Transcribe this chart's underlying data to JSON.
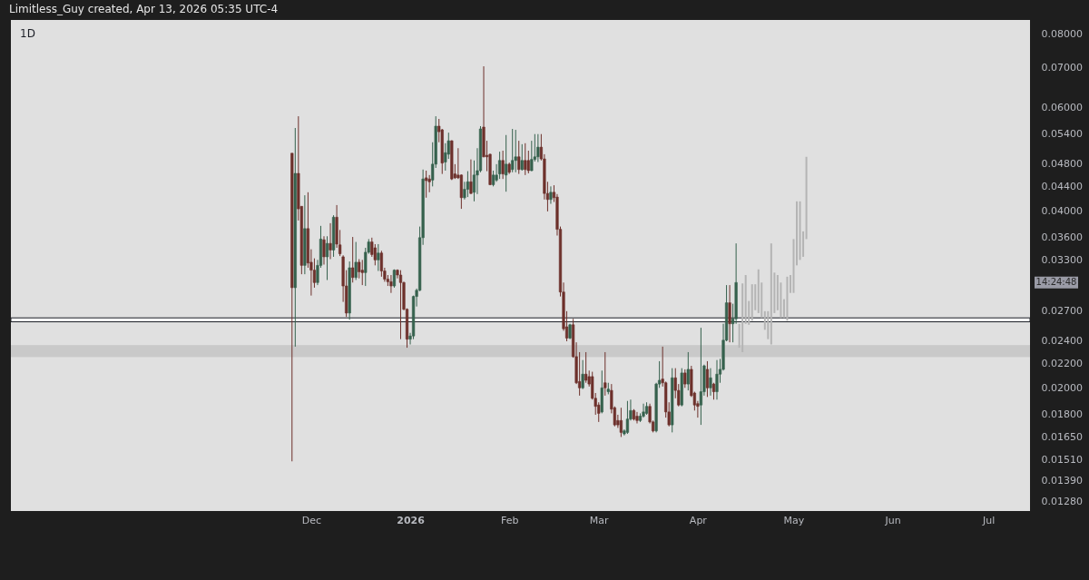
{
  "chart_data": {
    "type": "candlestick",
    "title": "1D",
    "annotations": [
      "Limitless_Guy created, Apr 13, 2026 05:35 UTC-4",
      "14:24:48"
    ],
    "x": [
      "2025-11-25",
      "2025-11-26",
      "2025-11-27",
      "2025-11-28",
      "2025-11-29",
      "2025-11-30",
      "2025-12-01",
      "2025-12-02",
      "2025-12-03",
      "2025-12-04",
      "2025-12-05",
      "2025-12-06",
      "2025-12-07",
      "2025-12-08",
      "2025-12-09",
      "2025-12-10",
      "2025-12-11",
      "2025-12-12",
      "2025-12-13",
      "2025-12-14",
      "2025-12-15",
      "2025-12-16",
      "2025-12-17",
      "2025-12-18",
      "2025-12-19",
      "2025-12-20",
      "2025-12-21",
      "2025-12-22",
      "2025-12-23",
      "2025-12-24",
      "2025-12-25",
      "2025-12-26",
      "2025-12-27",
      "2025-12-28",
      "2025-12-29",
      "2025-12-30",
      "2025-12-31",
      "2026-01-01",
      "2026-01-02",
      "2026-01-03",
      "2026-01-04",
      "2026-01-05",
      "2026-01-06",
      "2026-01-07",
      "2026-01-08",
      "2026-01-09",
      "2026-01-10",
      "2026-01-11",
      "2026-01-12",
      "2026-01-13",
      "2026-01-14",
      "2026-01-15",
      "2026-01-16",
      "2026-01-17",
      "2026-01-18",
      "2026-01-19",
      "2026-01-20",
      "2026-01-21",
      "2026-01-22",
      "2026-01-23",
      "2026-01-24",
      "2026-01-25",
      "2026-01-26",
      "2026-01-27",
      "2026-01-28",
      "2026-01-29",
      "2026-01-30",
      "2026-01-31",
      "2026-02-01",
      "2026-02-02",
      "2026-02-03",
      "2026-02-04",
      "2026-02-05",
      "2026-02-06",
      "2026-02-07",
      "2026-02-08",
      "2026-02-09",
      "2026-02-10",
      "2026-02-11",
      "2026-02-12",
      "2026-02-13",
      "2026-02-14",
      "2026-02-15",
      "2026-02-16",
      "2026-02-17",
      "2026-02-18",
      "2026-02-19",
      "2026-02-20",
      "2026-02-21",
      "2026-02-22",
      "2026-02-23",
      "2026-02-24",
      "2026-02-25",
      "2026-02-26",
      "2026-02-27",
      "2026-02-28",
      "2026-03-01",
      "2026-03-02",
      "2026-03-03",
      "2026-03-04",
      "2026-03-05",
      "2026-03-06",
      "2026-03-07",
      "2026-03-08",
      "2026-03-09",
      "2026-03-10",
      "2026-03-11",
      "2026-03-12",
      "2026-03-13",
      "2026-03-14",
      "2026-03-15",
      "2026-03-16",
      "2026-03-17",
      "2026-03-18",
      "2026-03-19",
      "2026-03-20",
      "2026-03-21",
      "2026-03-22",
      "2026-03-23",
      "2026-03-24",
      "2026-03-25",
      "2026-03-26",
      "2026-03-27",
      "2026-03-28",
      "2026-03-29",
      "2026-03-30",
      "2026-03-31",
      "2026-04-01",
      "2026-04-02",
      "2026-04-03",
      "2026-04-04",
      "2026-04-05",
      "2026-04-06",
      "2026-04-07",
      "2026-04-08",
      "2026-04-09",
      "2026-04-10",
      "2026-04-11",
      "2026-04-12",
      "2026-04-13"
    ],
    "ohlc": [
      [
        0.0501,
        0.0501,
        0.015,
        0.0296
      ],
      [
        0.0296,
        0.0553,
        0.0235,
        0.0463
      ],
      [
        0.0463,
        0.0579,
        0.0385,
        0.0403
      ],
      [
        0.0407,
        0.0407,
        0.0312,
        0.0323
      ],
      [
        0.0323,
        0.0425,
        0.0312,
        0.0373
      ],
      [
        0.0373,
        0.043,
        0.032,
        0.0326
      ],
      [
        0.0327,
        0.0344,
        0.0287,
        0.0317
      ],
      [
        0.0317,
        0.0332,
        0.0296,
        0.0302
      ],
      [
        0.0302,
        0.033,
        0.0299,
        0.0323
      ],
      [
        0.0323,
        0.0377,
        0.032,
        0.0358
      ],
      [
        0.0357,
        0.0362,
        0.0324,
        0.0334
      ],
      [
        0.0334,
        0.0362,
        0.0305,
        0.0352
      ],
      [
        0.0352,
        0.0381,
        0.0331,
        0.0343
      ],
      [
        0.0343,
        0.0393,
        0.0334,
        0.039
      ],
      [
        0.039,
        0.0409,
        0.0346,
        0.0351
      ],
      [
        0.035,
        0.0371,
        0.0335,
        0.0338
      ],
      [
        0.0334,
        0.0336,
        0.028,
        0.0298
      ],
      [
        0.0298,
        0.0317,
        0.0264,
        0.0268
      ],
      [
        0.0268,
        0.0328,
        0.0261,
        0.032
      ],
      [
        0.032,
        0.0361,
        0.0302,
        0.0308
      ],
      [
        0.0308,
        0.0354,
        0.0305,
        0.0327
      ],
      [
        0.0327,
        0.0331,
        0.0307,
        0.0315
      ],
      [
        0.0317,
        0.033,
        0.0299,
        0.0314
      ],
      [
        0.0314,
        0.0346,
        0.0298,
        0.034
      ],
      [
        0.034,
        0.0358,
        0.0338,
        0.0354
      ],
      [
        0.0354,
        0.036,
        0.0334,
        0.0337
      ],
      [
        0.0346,
        0.0351,
        0.0323,
        0.033
      ],
      [
        0.033,
        0.0351,
        0.0316,
        0.0339
      ],
      [
        0.0339,
        0.0342,
        0.0309,
        0.0316
      ],
      [
        0.0316,
        0.032,
        0.0303,
        0.0306
      ],
      [
        0.0306,
        0.0311,
        0.0298,
        0.0303
      ],
      [
        0.0303,
        0.0311,
        0.029,
        0.0298
      ],
      [
        0.0298,
        0.0318,
        0.0296,
        0.0317
      ],
      [
        0.0317,
        0.0318,
        0.0307,
        0.0311
      ],
      [
        0.0311,
        0.0317,
        0.0242,
        0.0302
      ],
      [
        0.0302,
        0.0303,
        0.0271,
        0.0272
      ],
      [
        0.0272,
        0.0273,
        0.0234,
        0.0242
      ],
      [
        0.0242,
        0.0248,
        0.0237,
        0.0245
      ],
      [
        0.0245,
        0.0287,
        0.0242,
        0.0286
      ],
      [
        0.0286,
        0.0295,
        0.0275,
        0.0293
      ],
      [
        0.0293,
        0.0376,
        0.0292,
        0.036
      ],
      [
        0.036,
        0.047,
        0.035,
        0.0453
      ],
      [
        0.0455,
        0.0468,
        0.0421,
        0.045
      ],
      [
        0.0453,
        0.046,
        0.043,
        0.0448
      ],
      [
        0.0451,
        0.0523,
        0.044,
        0.048
      ],
      [
        0.048,
        0.0579,
        0.0473,
        0.0557
      ],
      [
        0.0557,
        0.0573,
        0.0523,
        0.0545
      ],
      [
        0.0549,
        0.0551,
        0.0462,
        0.0482
      ],
      [
        0.0484,
        0.0521,
        0.0468,
        0.0502
      ],
      [
        0.0499,
        0.0543,
        0.049,
        0.0526
      ],
      [
        0.0526,
        0.0527,
        0.0451,
        0.0453
      ],
      [
        0.0462,
        0.048,
        0.0453,
        0.0455
      ],
      [
        0.046,
        0.0511,
        0.0453,
        0.0455
      ],
      [
        0.046,
        0.0461,
        0.0403,
        0.0421
      ],
      [
        0.0421,
        0.0448,
        0.0418,
        0.0435
      ],
      [
        0.0435,
        0.0467,
        0.0422,
        0.0448
      ],
      [
        0.0448,
        0.0489,
        0.0427,
        0.0428
      ],
      [
        0.043,
        0.0487,
        0.0415,
        0.046
      ],
      [
        0.046,
        0.0511,
        0.0427,
        0.0468
      ],
      [
        0.0468,
        0.0557,
        0.0465,
        0.0551
      ],
      [
        0.0555,
        0.0704,
        0.0493,
        0.0494
      ],
      [
        0.0497,
        0.0526,
        0.0467,
        0.0494
      ],
      [
        0.0499,
        0.05,
        0.0442,
        0.0443
      ],
      [
        0.0443,
        0.0468,
        0.044,
        0.046
      ],
      [
        0.0451,
        0.048,
        0.0448,
        0.046
      ],
      [
        0.0462,
        0.0504,
        0.0453,
        0.0487
      ],
      [
        0.0487,
        0.0506,
        0.0453,
        0.0462
      ],
      [
        0.046,
        0.0538,
        0.0431,
        0.048
      ],
      [
        0.048,
        0.0483,
        0.0462,
        0.0465
      ],
      [
        0.047,
        0.0551,
        0.0465,
        0.0487
      ],
      [
        0.0487,
        0.0549,
        0.0465,
        0.0494
      ],
      [
        0.0494,
        0.0526,
        0.0462,
        0.047
      ],
      [
        0.047,
        0.0519,
        0.0468,
        0.0487
      ],
      [
        0.0487,
        0.0521,
        0.046,
        0.047
      ],
      [
        0.0487,
        0.0506,
        0.0463,
        0.0468
      ],
      [
        0.0468,
        0.0526,
        0.0467,
        0.0489
      ],
      [
        0.0489,
        0.054,
        0.0485,
        0.0494
      ],
      [
        0.0494,
        0.054,
        0.0484,
        0.0513
      ],
      [
        0.0513,
        0.054,
        0.0487,
        0.049
      ],
      [
        0.049,
        0.0499,
        0.0418,
        0.0428
      ],
      [
        0.0428,
        0.0448,
        0.0399,
        0.0418
      ],
      [
        0.0418,
        0.044,
        0.0411,
        0.043
      ],
      [
        0.043,
        0.0442,
        0.0414,
        0.0421
      ],
      [
        0.0422,
        0.0427,
        0.0363,
        0.0372
      ],
      [
        0.0372,
        0.0376,
        0.0286,
        0.0291
      ],
      [
        0.0291,
        0.0302,
        0.025,
        0.0252
      ],
      [
        0.0254,
        0.027,
        0.024,
        0.0243
      ],
      [
        0.0243,
        0.0257,
        0.0242,
        0.0256
      ],
      [
        0.0256,
        0.0262,
        0.0225,
        0.0226
      ],
      [
        0.0226,
        0.0239,
        0.0203,
        0.0204
      ],
      [
        0.0205,
        0.023,
        0.0194,
        0.02
      ],
      [
        0.02,
        0.0223,
        0.0199,
        0.0211
      ],
      [
        0.0211,
        0.023,
        0.0204,
        0.0206
      ],
      [
        0.0209,
        0.0214,
        0.0201,
        0.0203
      ],
      [
        0.0209,
        0.0213,
        0.0191,
        0.0192
      ],
      [
        0.0192,
        0.0196,
        0.018,
        0.0186
      ],
      [
        0.0187,
        0.0189,
        0.0175,
        0.0181
      ],
      [
        0.0182,
        0.0214,
        0.0181,
        0.02
      ],
      [
        0.0204,
        0.023,
        0.0194,
        0.02
      ],
      [
        0.0197,
        0.0204,
        0.0195,
        0.0199
      ],
      [
        0.0198,
        0.0203,
        0.0181,
        0.0184
      ],
      [
        0.0185,
        0.0186,
        0.0172,
        0.0173
      ],
      [
        0.0176,
        0.018,
        0.0171,
        0.0173
      ],
      [
        0.0176,
        0.0185,
        0.0165,
        0.0168
      ],
      [
        0.0167,
        0.017,
        0.0166,
        0.0169
      ],
      [
        0.0168,
        0.019,
        0.0167,
        0.0177
      ],
      [
        0.0177,
        0.0191,
        0.0176,
        0.0183
      ],
      [
        0.0183,
        0.0184,
        0.0176,
        0.0177
      ],
      [
        0.0179,
        0.0182,
        0.0174,
        0.0176
      ],
      [
        0.0176,
        0.0181,
        0.0175,
        0.0179
      ],
      [
        0.0179,
        0.0188,
        0.0178,
        0.0182
      ],
      [
        0.0181,
        0.0189,
        0.018,
        0.0186
      ],
      [
        0.0186,
        0.0188,
        0.0174,
        0.0175
      ],
      [
        0.0175,
        0.0176,
        0.0168,
        0.0169
      ],
      [
        0.0169,
        0.0204,
        0.0168,
        0.0203
      ],
      [
        0.0203,
        0.0222,
        0.02,
        0.0206
      ],
      [
        0.0207,
        0.0235,
        0.0201,
        0.0204
      ],
      [
        0.0204,
        0.0205,
        0.0178,
        0.0182
      ],
      [
        0.0182,
        0.0189,
        0.0172,
        0.0173
      ],
      [
        0.0173,
        0.0216,
        0.0168,
        0.0208
      ],
      [
        0.0208,
        0.0216,
        0.0192,
        0.0198
      ],
      [
        0.0198,
        0.0203,
        0.0186,
        0.0187
      ],
      [
        0.0187,
        0.0216,
        0.0186,
        0.0212
      ],
      [
        0.0212,
        0.0215,
        0.02,
        0.0203
      ],
      [
        0.0203,
        0.023,
        0.0198,
        0.0215
      ],
      [
        0.0215,
        0.0218,
        0.0193,
        0.0194
      ],
      [
        0.0196,
        0.0197,
        0.0183,
        0.0187
      ],
      [
        0.0188,
        0.019,
        0.0178,
        0.0186
      ],
      [
        0.0187,
        0.0253,
        0.0173,
        0.0197
      ],
      [
        0.0197,
        0.0219,
        0.0194,
        0.0218
      ],
      [
        0.0215,
        0.0222,
        0.0193,
        0.02
      ],
      [
        0.02,
        0.0216,
        0.0194,
        0.0208
      ],
      [
        0.0203,
        0.0204,
        0.0191,
        0.0197
      ],
      [
        0.0197,
        0.0223,
        0.0191,
        0.0211
      ],
      [
        0.0211,
        0.0224,
        0.0204,
        0.0215
      ],
      [
        0.0215,
        0.0257,
        0.0214,
        0.0241
      ],
      [
        0.0241,
        0.0299,
        0.024,
        0.0279
      ],
      [
        0.0279,
        0.0299,
        0.0239,
        0.0257
      ],
      [
        0.0257,
        0.0278,
        0.0239,
        0.0262
      ],
      [
        0.0262,
        0.0352,
        0.0257,
        0.0302
      ]
    ],
    "colors": [
      "#6d302b",
      "#35614d",
      "#6d302b",
      "#6d302b",
      "#35614d",
      "#6d302b",
      "#6d302b",
      "#6d302b",
      "#35614d",
      "#35614d",
      "#6d302b",
      "#35614d",
      "#6d302b",
      "#35614d",
      "#6d302b",
      "#6d302b",
      "#6d302b",
      "#6d302b",
      "#35614d",
      "#6d302b",
      "#35614d",
      "#6d302b",
      "#6d302b",
      "#35614d",
      "#35614d",
      "#6d302b",
      "#6d302b",
      "#35614d",
      "#6d302b",
      "#6d302b",
      "#6d302b",
      "#6d302b",
      "#35614d",
      "#6d302b",
      "#6d302b",
      "#6d302b",
      "#6d302b",
      "#35614d",
      "#35614d",
      "#35614d",
      "#35614d",
      "#35614d",
      "#6d302b",
      "#6d302b",
      "#35614d",
      "#35614d",
      "#6d302b",
      "#6d302b",
      "#35614d",
      "#35614d",
      "#6d302b",
      "#6d302b",
      "#6d302b",
      "#6d302b",
      "#35614d",
      "#35614d",
      "#6d302b",
      "#35614d",
      "#35614d",
      "#35614d",
      "#6d302b",
      "#6d302b",
      "#6d302b",
      "#35614d",
      "#35614d",
      "#35614d",
      "#6d302b",
      "#35614d",
      "#6d302b",
      "#35614d",
      "#35614d",
      "#6d302b",
      "#35614d",
      "#6d302b",
      "#6d302b",
      "#35614d",
      "#35614d",
      "#35614d",
      "#6d302b",
      "#6d302b",
      "#6d302b",
      "#35614d",
      "#6d302b",
      "#6d302b",
      "#6d302b",
      "#6d302b",
      "#6d302b",
      "#35614d",
      "#6d302b",
      "#6d302b",
      "#6d302b",
      "#35614d",
      "#6d302b",
      "#6d302b",
      "#6d302b",
      "#6d302b",
      "#6d302b",
      "#35614d",
      "#6d302b",
      "#35614d",
      "#6d302b",
      "#6d302b",
      "#6d302b",
      "#6d302b",
      "#35614d",
      "#35614d",
      "#35614d",
      "#6d302b",
      "#6d302b",
      "#35614d",
      "#35614d",
      "#35614d",
      "#6d302b",
      "#6d302b",
      "#35614d",
      "#35614d",
      "#6d302b",
      "#6d302b",
      "#6d302b",
      "#35614d",
      "#6d302b",
      "#6d302b",
      "#35614d",
      "#6d302b",
      "#35614d",
      "#6d302b",
      "#6d302b",
      "#6d302b",
      "#35614d",
      "#35614d",
      "#6d302b",
      "#35614d",
      "#6d302b",
      "#35614d",
      "#35614d",
      "#35614d",
      "#35614d",
      "#6d302b",
      "#35614d",
      "#35614d"
    ],
    "series": [
      {
        "type": "bar",
        "color": "#b4b4b4",
        "x": [
          "2026-04-14",
          "2026-04-15",
          "2026-04-16",
          "2026-04-17",
          "2026-04-18",
          "2026-04-19",
          "2026-04-20",
          "2026-04-21",
          "2026-04-22",
          "2026-04-23",
          "2026-04-24",
          "2026-04-25",
          "2026-04-26",
          "2026-04-27",
          "2026-04-28",
          "2026-04-29",
          "2026-04-30",
          "2026-05-01",
          "2026-05-02",
          "2026-05-03",
          "2026-05-04",
          "2026-05-05"
        ],
        "base": [
          0.0234,
          0.023,
          0.0257,
          0.0256,
          0.026,
          0.0271,
          0.0268,
          0.0263,
          0.0251,
          0.0242,
          0.0237,
          0.0268,
          0.0271,
          0.0263,
          0.0263,
          0.026,
          0.029,
          0.029,
          0.0323,
          0.033,
          0.0334,
          0.0358
        ],
        "values": [
          0.0023,
          0.0071,
          0.0054,
          0.0025,
          0.004,
          0.0029,
          0.005,
          0.0039,
          0.0019,
          0.0028,
          0.0115,
          0.0046,
          0.004,
          0.0039,
          0.002,
          0.0049,
          0.0021,
          0.0068,
          0.0092,
          0.0085,
          0.0035,
          0.0136
        ]
      }
    ],
    "bands": [
      {
        "axis": "y",
        "from": 0.0259,
        "to": 0.0263,
        "color": "#ffffff"
      },
      {
        "axis": "y",
        "from": 0.0226,
        "to": 0.0236,
        "color": "#c9c9c9"
      }
    ],
    "xlim": [
      "2025-08-29",
      "2026-07-14"
    ],
    "xticks": [
      {
        "value": "2025-12-01",
        "label": "Dec"
      },
      {
        "value": "2026-01-01",
        "label": "2026"
      },
      {
        "value": "2026-02-01",
        "label": "Feb"
      },
      {
        "value": "2026-03-01",
        "label": "Mar"
      },
      {
        "value": "2026-04-01",
        "label": "Apr"
      },
      {
        "value": "2026-05-01",
        "label": "May"
      },
      {
        "value": "2026-06-01",
        "label": "Jun"
      },
      {
        "value": "2026-07-01",
        "label": "Jul"
      }
    ],
    "ylim": [
      0.01235,
      0.0844
    ],
    "log": true,
    "yticks": [
      {
        "value": 0.08,
        "label": "0.08000"
      },
      {
        "value": 0.07,
        "label": "0.07000"
      },
      {
        "value": 0.06,
        "label": "0.06000"
      },
      {
        "value": 0.054,
        "label": "0.05400"
      },
      {
        "value": 0.048,
        "label": "0.04800"
      },
      {
        "value": 0.044,
        "label": "0.04400"
      },
      {
        "value": 0.04,
        "label": "0.04000"
      },
      {
        "value": 0.036,
        "label": "0.03600"
      },
      {
        "value": 0.033,
        "label": "0.03300"
      },
      {
        "value": 0.027,
        "label": "0.02700"
      },
      {
        "value": 0.024,
        "label": "0.02400"
      },
      {
        "value": 0.022,
        "label": "0.02200"
      },
      {
        "value": 0.02,
        "label": "0.02000"
      },
      {
        "value": 0.018,
        "label": "0.01800"
      },
      {
        "value": 0.0165,
        "label": "0.01650"
      },
      {
        "value": 0.0151,
        "label": "0.01510"
      },
      {
        "value": 0.0139,
        "label": "0.01390"
      },
      {
        "value": 0.0128,
        "label": "0.01280"
      }
    ]
  }
}
